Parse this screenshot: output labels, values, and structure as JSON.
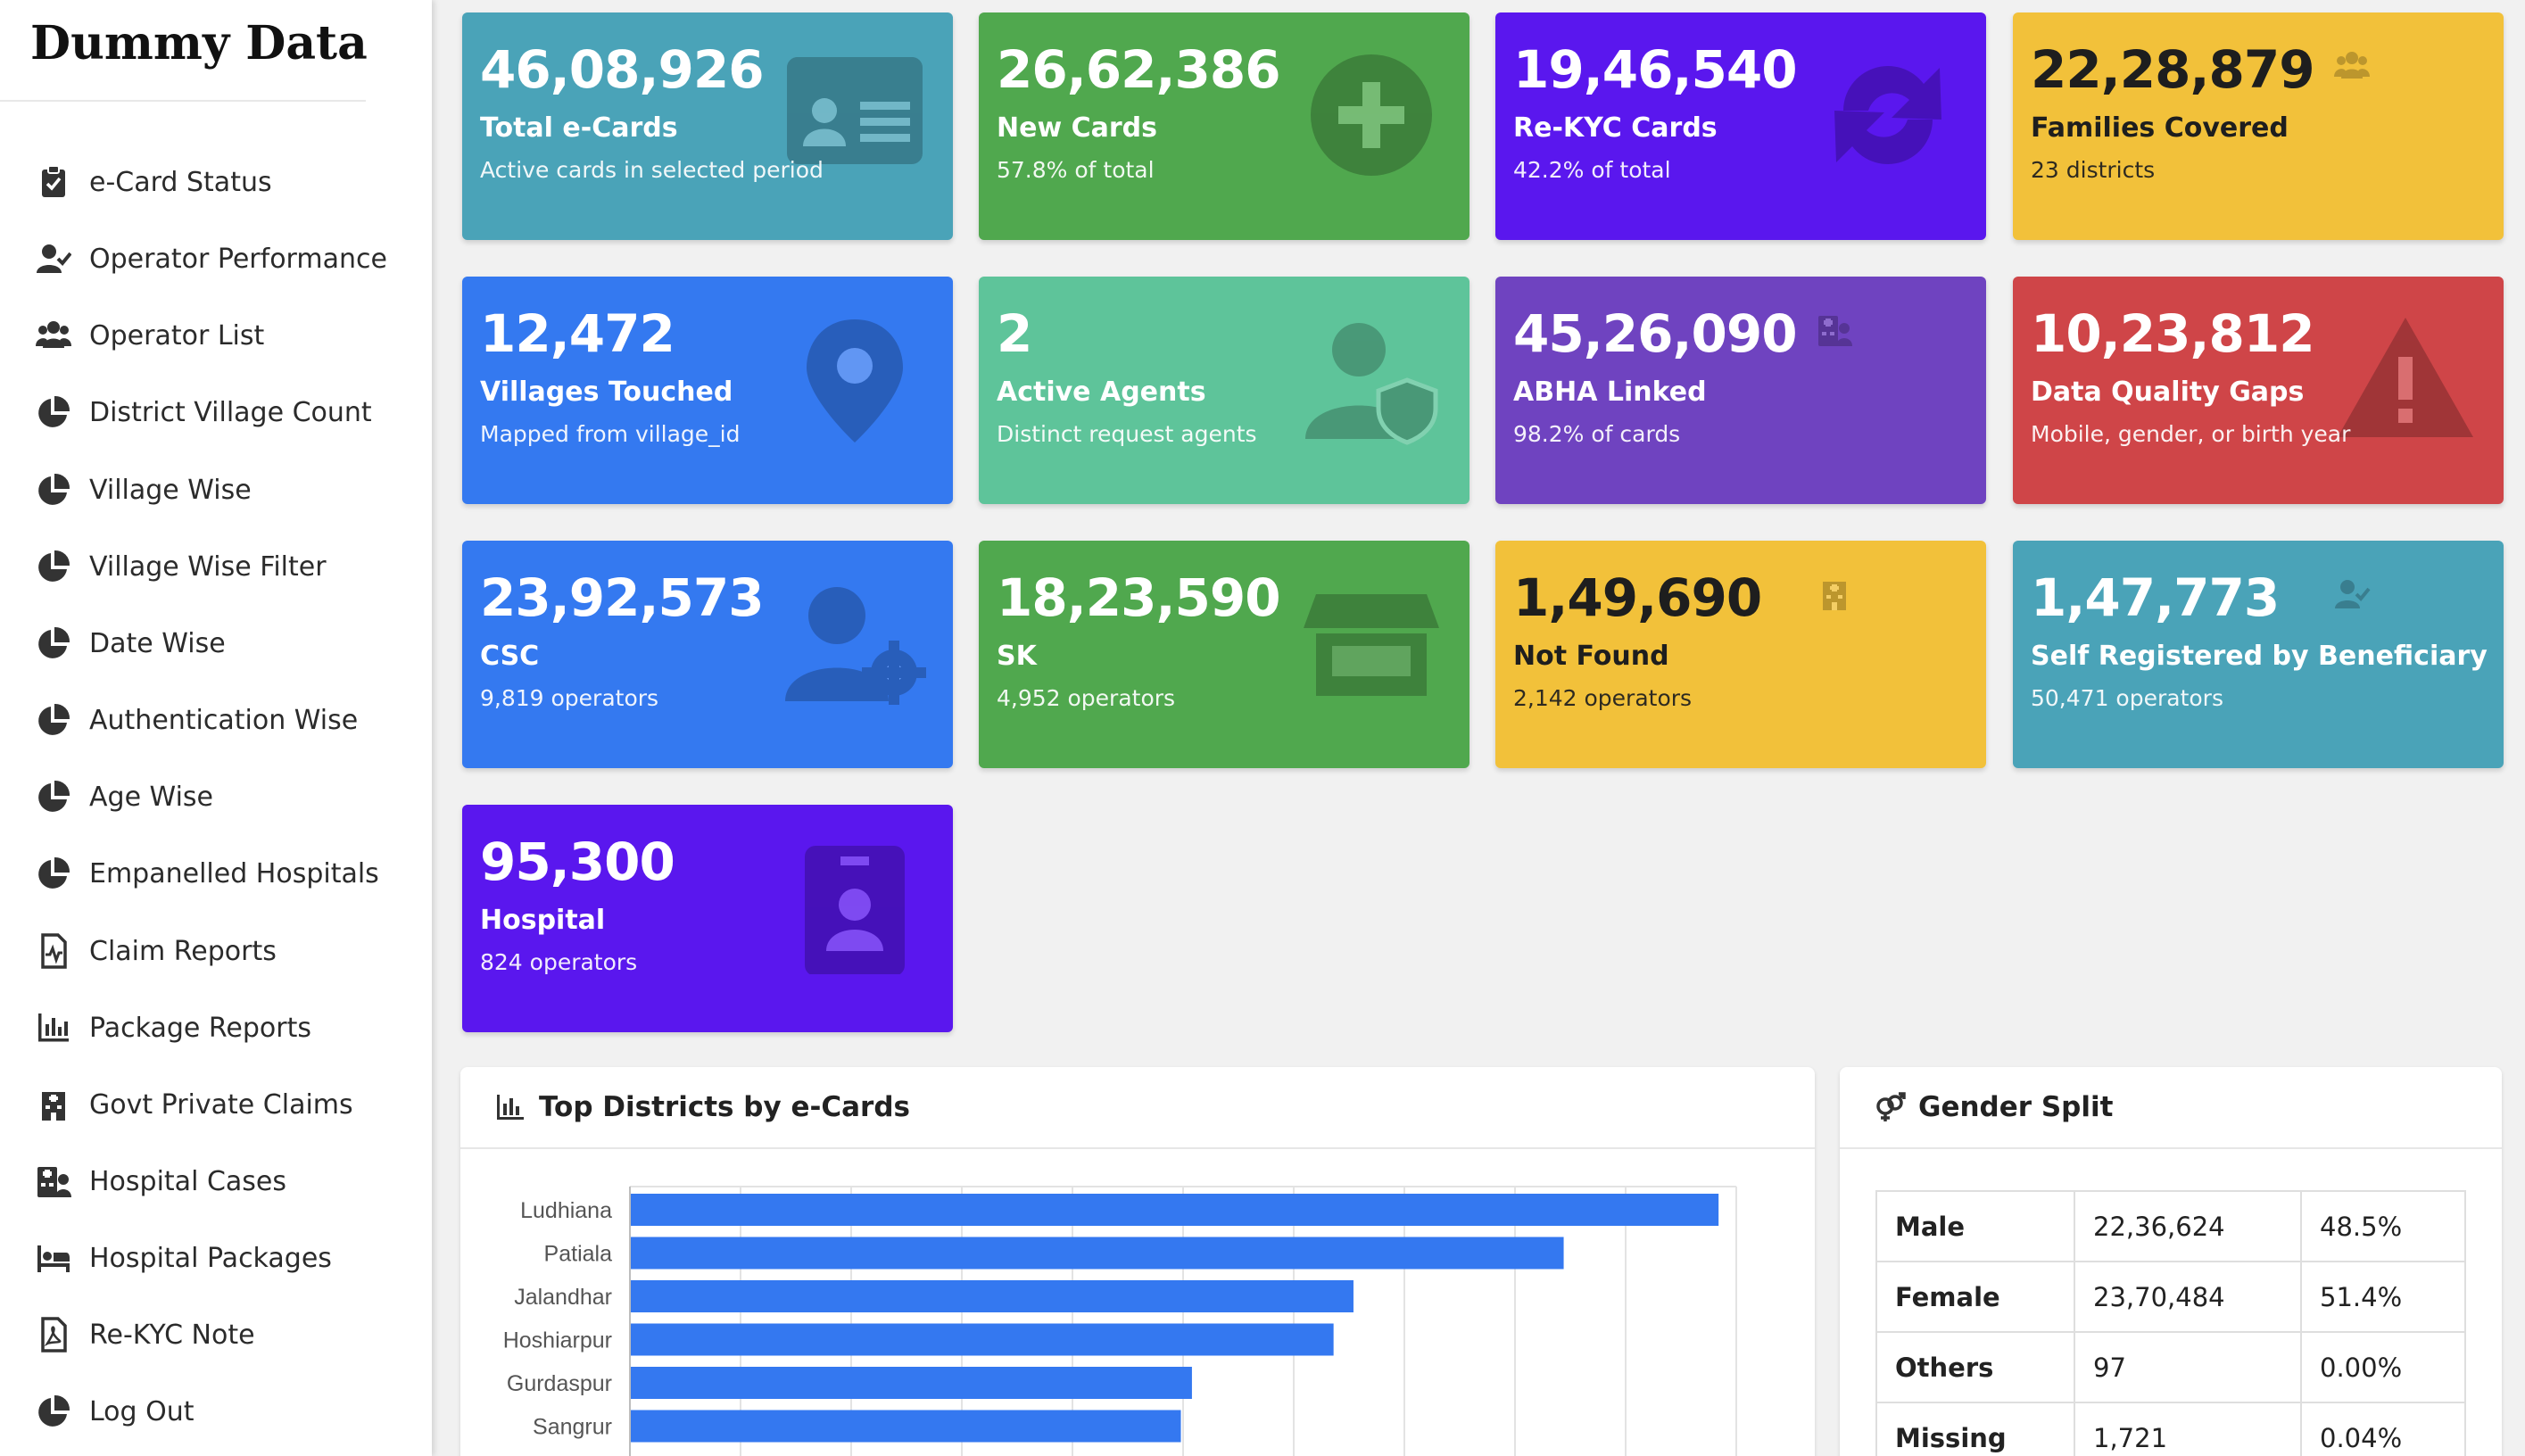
{
  "brand": {
    "title": "Dummy Data"
  },
  "sidebar": {
    "items": [
      {
        "label": "e-Card Status",
        "icon": "clipboard-check-icon"
      },
      {
        "label": "Operator Performance",
        "icon": "user-check-icon"
      },
      {
        "label": "Operator List",
        "icon": "users-icon"
      },
      {
        "label": "District Village Count",
        "icon": "pie-chart-icon"
      },
      {
        "label": "Village Wise",
        "icon": "pie-chart-icon"
      },
      {
        "label": "Village Wise Filter",
        "icon": "pie-chart-icon"
      },
      {
        "label": "Date Wise",
        "icon": "pie-chart-icon"
      },
      {
        "label": "Authentication Wise",
        "icon": "pie-chart-icon"
      },
      {
        "label": "Age Wise",
        "icon": "pie-chart-icon"
      },
      {
        "label": "Empanelled Hospitals",
        "icon": "pie-chart-icon"
      },
      {
        "label": "Claim Reports",
        "icon": "file-medical-icon"
      },
      {
        "label": "Package Reports",
        "icon": "bar-chart-icon"
      },
      {
        "label": "Govt Private Claims",
        "icon": "hospital-building-icon"
      },
      {
        "label": "Hospital Cases",
        "icon": "hospital-user-icon"
      },
      {
        "label": "Hospital Packages",
        "icon": "bed-icon"
      },
      {
        "label": "Re-KYC Note",
        "icon": "file-pdf-icon"
      },
      {
        "label": "Log Out",
        "icon": "pie-chart-icon"
      }
    ]
  },
  "cards": [
    {
      "value": "46,08,926",
      "label": "Total e-Cards",
      "sub": "Active cards in selected period",
      "color": "#4aa3b8",
      "icon": "id-card-icon"
    },
    {
      "value": "26,62,386",
      "label": "New Cards",
      "sub": "57.8% of total",
      "color": "#50a84e",
      "icon": "plus-circle-icon"
    },
    {
      "value": "19,46,540",
      "label": "Re-KYC Cards",
      "sub": "42.2% of total",
      "color": "#5a17ee",
      "icon": "sync-icon"
    },
    {
      "value": "22,28,879",
      "label": "Families Covered",
      "sub": "23 districts",
      "color": "#f2c13a",
      "icon": "users-icon"
    },
    {
      "value": "12,472",
      "label": "Villages Touched",
      "sub": "Mapped from village_id",
      "color": "#3479f0",
      "icon": "map-pin-icon"
    },
    {
      "value": "2",
      "label": "Active Agents",
      "sub": "Distinct request agents",
      "color": "#5ec49a",
      "icon": "user-shield-icon"
    },
    {
      "value": "45,26,090",
      "label": "ABHA Linked",
      "sub": "98.2% of cards",
      "color": "#6f43c0",
      "icon": "hospital-user-icon"
    },
    {
      "value": "10,23,812",
      "label": "Data Quality Gaps",
      "sub": "Mobile, gender, or birth year",
      "color": "#cf4548",
      "icon": "warning-icon"
    },
    {
      "value": "23,92,573",
      "label": "CSC",
      "sub": "9,819 operators",
      "color": "#3479f0",
      "icon": "user-gear-icon"
    },
    {
      "value": "18,23,590",
      "label": "SK",
      "sub": "4,952 operators",
      "color": "#50a84e",
      "icon": "store-icon"
    },
    {
      "value": "1,49,690",
      "label": "Not Found",
      "sub": "2,142 operators",
      "color": "#f2c13a",
      "icon": "hospital-building-icon"
    },
    {
      "value": "1,47,773",
      "label": "Self Registered by Beneficiary",
      "sub": "50,471 operators",
      "color": "#4aa3b8",
      "icon": "user-check-icon"
    },
    {
      "value": "95,300",
      "label": "Hospital",
      "sub": "824 operators",
      "color": "#5a17ee",
      "icon": "id-badge-icon"
    }
  ],
  "districts_panel": {
    "title": "Top Districts by e-Cards",
    "icon": "bar-chart-icon"
  },
  "chart_data": {
    "type": "bar",
    "orientation": "horizontal",
    "categories": [
      "Ludhiana",
      "Patiala",
      "Jalandhar",
      "Hoshiarpur",
      "Gurdaspur",
      "Sangrur"
    ],
    "values": [
      492000,
      422000,
      327000,
      318000,
      254000,
      249000
    ],
    "color": "#3478f0",
    "xlim": [
      0,
      500000
    ],
    "grid": true
  },
  "gender_panel": {
    "title": "Gender Split",
    "icon": "venus-mars-icon",
    "rows": [
      {
        "label": "Male",
        "count": "22,36,624",
        "pct": "48.5%"
      },
      {
        "label": "Female",
        "count": "23,70,484",
        "pct": "51.4%"
      },
      {
        "label": "Others",
        "count": "97",
        "pct": "0.00%"
      },
      {
        "label": "Missing",
        "count": "1,721",
        "pct": "0.04%"
      }
    ]
  }
}
